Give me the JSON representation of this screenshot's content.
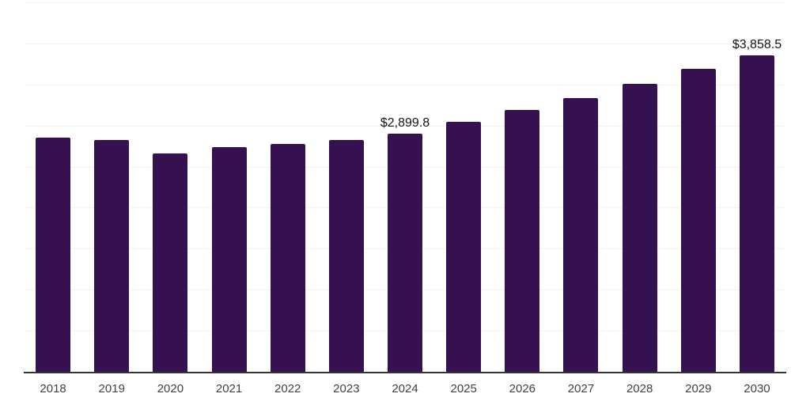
{
  "chart_data": {
    "type": "bar",
    "title": "",
    "xlabel": "",
    "ylabel": "",
    "categories": [
      "2018",
      "2019",
      "2020",
      "2021",
      "2022",
      "2023",
      "2024",
      "2025",
      "2026",
      "2027",
      "2028",
      "2029",
      "2030"
    ],
    "values": [
      2850,
      2820,
      2663,
      2737,
      2775,
      2820,
      2899.8,
      3044,
      3186,
      3337,
      3506,
      3689,
      3858.5
    ],
    "labels": [
      "",
      "",
      "",
      "",
      "",
      "",
      "$2,899.8",
      "",
      "",
      "",
      "",
      "",
      "$3,858.5"
    ],
    "ylim": [
      0,
      4500
    ],
    "gridline_step": 500,
    "grid": "horizontal",
    "legend": "none",
    "y_axis_tick_labels": "none",
    "bar_color": "#361150",
    "axis_line_color": "#333333",
    "gridline_color": "#f2f2f2",
    "tick_label_color": "#414141",
    "data_label_color": "#141414",
    "background_color": "#ffffff"
  }
}
